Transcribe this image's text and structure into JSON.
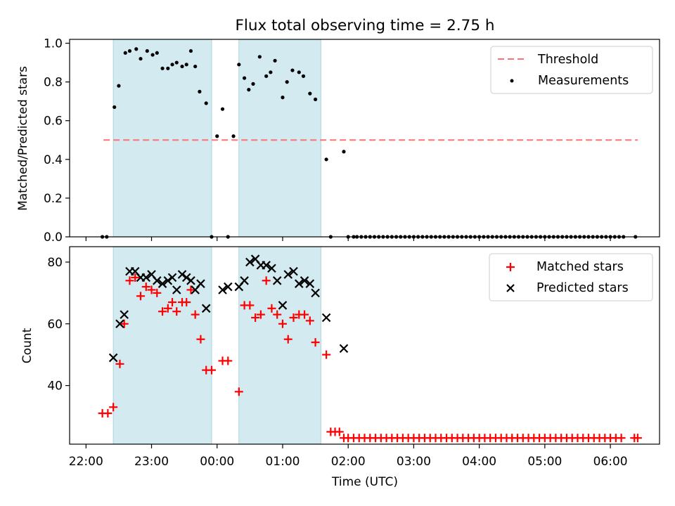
{
  "chart_data": {
    "title": "Flux total observing time = 2.75 h",
    "xlabel": "Time (UTC)",
    "x_unit": "minutes after 22:00 UTC",
    "xlim": [
      -15,
      525
    ],
    "x_ticks": [
      {
        "value": 0,
        "label": "22:00"
      },
      {
        "value": 60,
        "label": "23:00"
      },
      {
        "value": 120,
        "label": "00:00"
      },
      {
        "value": 180,
        "label": "01:00"
      },
      {
        "value": 240,
        "label": "02:00"
      },
      {
        "value": 300,
        "label": "03:00"
      },
      {
        "value": 360,
        "label": "04:00"
      },
      {
        "value": 420,
        "label": "05:00"
      },
      {
        "value": 480,
        "label": "06:00"
      }
    ],
    "shaded_intervals": [
      [
        25,
        115
      ],
      [
        140,
        215
      ]
    ],
    "shade_color": "#d3eaf0",
    "panels": [
      {
        "type": "scatter",
        "ylabel": "Matched/Predicted stars",
        "ylim": [
          0,
          1.02
        ],
        "y_ticks": [
          "0.0",
          "0.2",
          "0.4",
          "0.6",
          "0.8",
          "1.0"
        ],
        "threshold": {
          "label": "Threshold",
          "value": 0.5,
          "x_range": [
            16,
            505
          ],
          "color": "#ff7070"
        },
        "legend": [
          "Threshold",
          "Measurements"
        ],
        "series": [
          {
            "name": "Measurements",
            "color": "#000000",
            "marker": "dot",
            "x": [
              15,
              19,
              26,
              30,
              36,
              40,
              46,
              50,
              56,
              61,
              65,
              70,
              75,
              79,
              83,
              88,
              92,
              96,
              100,
              104,
              110,
              115,
              120,
              125,
              130,
              135,
              140,
              145,
              149,
              153,
              159,
              165,
              169,
              173,
              180,
              184,
              189,
              195,
              199,
              205,
              210,
              220,
              224,
              236,
              240,
              245,
              248,
              252,
              256,
              260,
              264,
              268,
              272,
              276,
              280,
              284,
              288,
              292,
              296,
              300,
              304,
              308,
              312,
              316,
              320,
              324,
              328,
              332,
              336,
              340,
              344,
              348,
              352,
              356,
              360,
              364,
              368,
              372,
              376,
              380,
              384,
              388,
              392,
              396,
              400,
              404,
              408,
              412,
              416,
              420,
              424,
              428,
              432,
              436,
              440,
              444,
              448,
              452,
              456,
              460,
              464,
              468,
              472,
              476,
              480,
              484,
              488,
              492,
              503
            ],
            "y": [
              0,
              0,
              0.67,
              0.78,
              0.95,
              0.96,
              0.97,
              0.92,
              0.96,
              0.94,
              0.95,
              0.87,
              0.87,
              0.89,
              0.9,
              0.88,
              0.89,
              0.96,
              0.88,
              0.75,
              0.69,
              0,
              0.52,
              0.66,
              0,
              0.52,
              0.89,
              0.82,
              0.76,
              0.79,
              0.93,
              0.83,
              0.85,
              0.91,
              0.72,
              0.8,
              0.86,
              0.85,
              0.83,
              0.74,
              0.71,
              0.4,
              0,
              0.44,
              0,
              0,
              0,
              0,
              0,
              0,
              0,
              0,
              0,
              0,
              0,
              0,
              0,
              0,
              0,
              0,
              0,
              0,
              0,
              0,
              0,
              0,
              0,
              0,
              0,
              0,
              0,
              0,
              0,
              0,
              0,
              0,
              0,
              0,
              0,
              0,
              0,
              0,
              0,
              0,
              0,
              0,
              0,
              0,
              0,
              0,
              0,
              0,
              0,
              0,
              0,
              0,
              0,
              0,
              0,
              0,
              0,
              0,
              0,
              0,
              0,
              0,
              0,
              0,
              0
            ]
          }
        ]
      },
      {
        "type": "scatter",
        "ylabel": "Count",
        "ylim": [
          21,
          85
        ],
        "y_ticks": [
          "40",
          "60",
          "80"
        ],
        "legend": [
          "Matched stars",
          "Predicted stars"
        ],
        "series": [
          {
            "name": "Matched stars",
            "color": "#ff0000",
            "marker": "plus",
            "x": [
              15,
              20,
              25,
              31,
              35,
              40,
              45,
              50,
              55,
              60,
              65,
              70,
              75,
              79,
              83,
              88,
              92,
              96,
              100,
              105,
              110,
              115,
              125,
              130,
              140,
              145,
              150,
              155,
              160,
              165,
              170,
              175,
              180,
              185,
              190,
              195,
              200,
              205,
              210,
              220,
              224,
              228,
              232,
              236,
              240,
              245,
              250,
              255,
              260,
              265,
              270,
              275,
              280,
              285,
              290,
              295,
              300,
              305,
              310,
              315,
              320,
              325,
              330,
              335,
              340,
              345,
              350,
              355,
              360,
              365,
              370,
              375,
              380,
              385,
              390,
              395,
              400,
              405,
              410,
              415,
              420,
              425,
              430,
              435,
              440,
              445,
              450,
              455,
              460,
              465,
              470,
              475,
              480,
              485,
              490,
              502,
              505
            ],
            "y": [
              31,
              31,
              33,
              47,
              60,
              74,
              75,
              69,
              72,
              71,
              70,
              64,
              65,
              67,
              64,
              67,
              67,
              71,
              63,
              55,
              45,
              45,
              48,
              48,
              38,
              66,
              66,
              62,
              63,
              74,
              65,
              63,
              60,
              55,
              62,
              63,
              63,
              61,
              54,
              50,
              25,
              25,
              25,
              23,
              23,
              23,
              23,
              23,
              23,
              23,
              23,
              23,
              23,
              23,
              23,
              23,
              23,
              23,
              23,
              23,
              23,
              23,
              23,
              23,
              23,
              23,
              23,
              23,
              23,
              23,
              23,
              23,
              23,
              23,
              23,
              23,
              23,
              23,
              23,
              23,
              23,
              23,
              23,
              23,
              23,
              23,
              23,
              23,
              23,
              23,
              23,
              23,
              23,
              23,
              23,
              23,
              23
            ]
          },
          {
            "name": "Predicted stars",
            "color": "#000000",
            "marker": "x",
            "x": [
              25,
              31,
              35,
              40,
              45,
              50,
              55,
              60,
              65,
              70,
              75,
              79,
              83,
              88,
              92,
              96,
              100,
              105,
              110,
              125,
              130,
              140,
              145,
              150,
              155,
              160,
              165,
              170,
              175,
              180,
              185,
              190,
              195,
              200,
              205,
              210,
              220,
              236
            ],
            "y": [
              49,
              60,
              63,
              77,
              77,
              75,
              75,
              76,
              74,
              73,
              74,
              75,
              71,
              76,
              75,
              74,
              71,
              73,
              65,
              71,
              72,
              72,
              74,
              80,
              81,
              79,
              79,
              78,
              74,
              66,
              76,
              77,
              73,
              74,
              73,
              70,
              62,
              52
            ]
          }
        ]
      }
    ]
  }
}
